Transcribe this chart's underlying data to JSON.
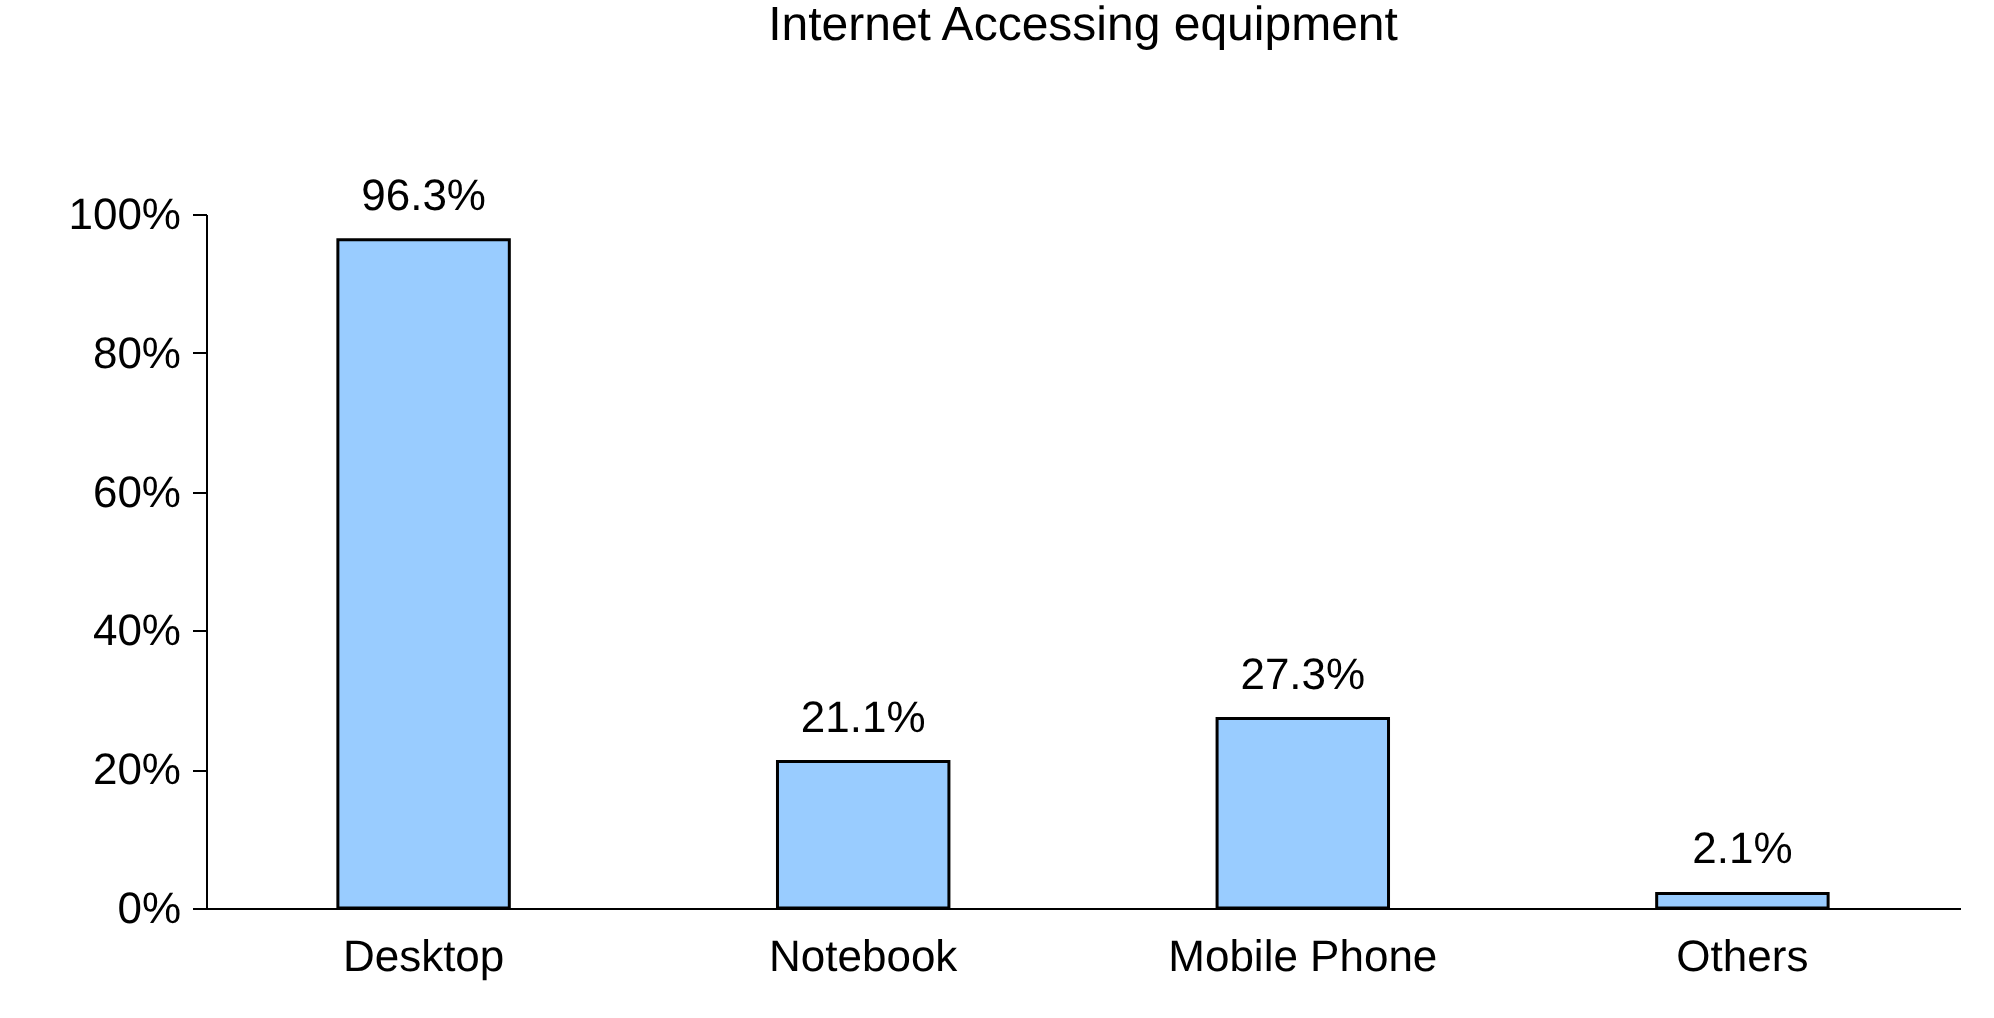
{
  "chart_data": {
    "type": "bar",
    "title": "Internet Accessing equipment",
    "categories": [
      "Desktop",
      "Notebook",
      "Mobile Phone",
      "Others"
    ],
    "values": [
      96.3,
      21.1,
      27.3,
      2.1
    ],
    "value_labels": [
      "96.3%",
      "21.1%",
      "27.3%",
      "2.1%"
    ],
    "color": "#99ccff",
    "ylim": [
      0,
      100
    ],
    "yticks": [
      {
        "value": 0,
        "label": "0%"
      },
      {
        "value": 20,
        "label": "20%"
      },
      {
        "value": 40,
        "label": "40%"
      },
      {
        "value": 60,
        "label": "60%"
      },
      {
        "value": 80,
        "label": "80%"
      },
      {
        "value": 100,
        "label": "100%"
      }
    ],
    "grid": false
  }
}
